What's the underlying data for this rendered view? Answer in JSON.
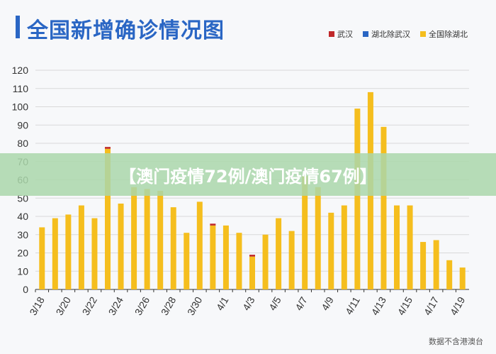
{
  "header": {
    "title": "全国新增确诊情况图"
  },
  "banner": {
    "text": "【澳门疫情72例/澳门疫情67例】"
  },
  "footer": {
    "source": "数据不含港澳台"
  },
  "colors": {
    "wuhan": "#c0282a",
    "hubei_ex_wuhan": "#2a66c4",
    "national_ex_hubei": "#f5be1e",
    "accent": "#2a66c4"
  },
  "chart_data": {
    "type": "bar",
    "title": "全国新增确诊情况图",
    "xlabel": "",
    "ylabel": "",
    "ylim": [
      0,
      120
    ],
    "yticks": [
      0,
      10,
      20,
      30,
      40,
      50,
      60,
      70,
      80,
      90,
      100,
      110,
      120
    ],
    "grid": true,
    "legend_position": "top-right",
    "stacked": true,
    "categories": [
      "3/18",
      "3/19",
      "3/20",
      "3/21",
      "3/22",
      "3/23",
      "3/24",
      "3/25",
      "3/26",
      "3/27",
      "3/28",
      "3/29",
      "3/30",
      "3/31",
      "4/1",
      "4/2",
      "4/3",
      "4/4",
      "4/5",
      "4/6",
      "4/7",
      "4/8",
      "4/9",
      "4/10",
      "4/11",
      "4/12",
      "4/13",
      "4/14",
      "4/15",
      "4/16",
      "4/17",
      "4/18",
      "4/19"
    ],
    "tick_labels": [
      "3/18",
      "3/20",
      "3/22",
      "3/24",
      "3/26",
      "3/28",
      "3/30",
      "4/1",
      "4/3",
      "4/5",
      "4/7",
      "4/9",
      "4/11",
      "4/13",
      "4/15",
      "4/17",
      "4/19"
    ],
    "series": [
      {
        "name": "武汉",
        "color": "#c0282a",
        "values": [
          0,
          0,
          0,
          0,
          0,
          1,
          0,
          0,
          0,
          0,
          0,
          0,
          0,
          1,
          0,
          0,
          1,
          0,
          0,
          0,
          0,
          0,
          0,
          0,
          0,
          0,
          0,
          0,
          0,
          0,
          0,
          0,
          0
        ]
      },
      {
        "name": "湖北除武汉",
        "color": "#2a66c4",
        "values": [
          0,
          0,
          0,
          0,
          0,
          0,
          0,
          0,
          0,
          0,
          0,
          0,
          0,
          0,
          0,
          0,
          0,
          0,
          0,
          0,
          0,
          0,
          0,
          0,
          0,
          0,
          0,
          0,
          0,
          0,
          0,
          0,
          0
        ]
      },
      {
        "name": "全国除湖北",
        "color": "#f5be1e",
        "values": [
          34,
          39,
          41,
          46,
          39,
          77,
          47,
          56,
          55,
          54,
          45,
          31,
          48,
          35,
          35,
          31,
          18,
          30,
          39,
          32,
          62,
          56,
          42,
          46,
          99,
          108,
          89,
          46,
          46,
          26,
          27,
          16,
          12
        ]
      }
    ]
  }
}
